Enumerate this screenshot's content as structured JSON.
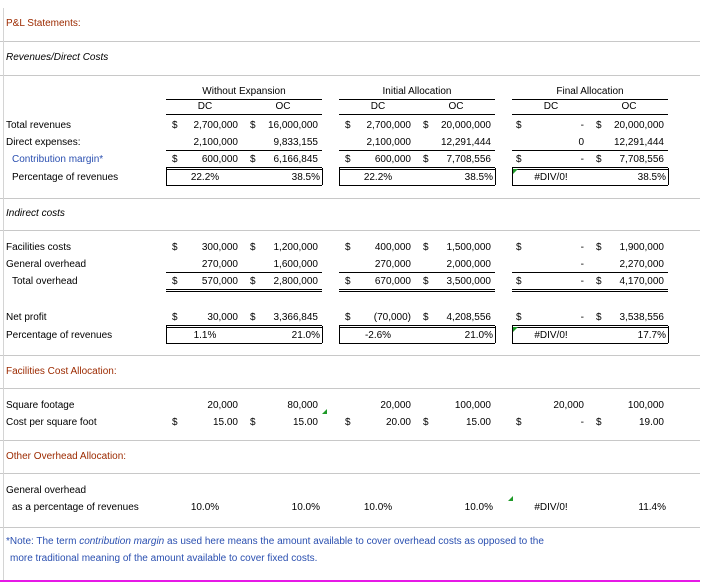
{
  "sections": {
    "pl": "P&L Statements:",
    "revenues": "Revenues/Direct Costs",
    "indirect": "Indirect costs",
    "facilities": "Facilities Cost Allocation:",
    "other": "Other Overhead Allocation:"
  },
  "headers": {
    "groups": [
      "Without Expansion",
      "Initial Allocation",
      "Final Allocation"
    ],
    "dc": "DC",
    "oc": "OC"
  },
  "currency": "$",
  "rows": {
    "total_revenues": {
      "label": "Total revenues",
      "values": [
        "2,700,000",
        "16,000,000",
        "2,700,000",
        "20,000,000",
        "-",
        "20,000,000"
      ]
    },
    "direct_expenses": {
      "label": "Direct expenses:",
      "values": [
        "2,100,000",
        "9,833,155",
        "2,100,000",
        "12,291,444",
        "0",
        "12,291,444"
      ]
    },
    "contribution_margin": {
      "label": "Contribution margin*",
      "values": [
        "600,000",
        "6,166,845",
        "600,000",
        "7,708,556",
        "-",
        "7,708,556"
      ]
    },
    "pct_revenues": {
      "label": "Percentage of revenues",
      "values": [
        "22.2%",
        "38.5%",
        "22.2%",
        "38.5%",
        "#DIV/0!",
        "38.5%"
      ]
    },
    "facilities_costs": {
      "label": "Facilities costs",
      "values": [
        "300,000",
        "1,200,000",
        "400,000",
        "1,500,000",
        "-",
        "1,900,000"
      ]
    },
    "general_overhead": {
      "label": "General overhead",
      "values": [
        "270,000",
        "1,600,000",
        "270,000",
        "2,000,000",
        "-",
        "2,270,000"
      ]
    },
    "total_overhead": {
      "label": "Total overhead",
      "values": [
        "570,000",
        "2,800,000",
        "670,000",
        "3,500,000",
        "-",
        "4,170,000"
      ]
    },
    "net_profit": {
      "label": "Net profit",
      "values": [
        "30,000",
        "3,366,845",
        "(70,000)",
        "4,208,556",
        "-",
        "3,538,556"
      ]
    },
    "net_pct": {
      "label": "Percentage of revenues",
      "values": [
        "1.1%",
        "21.0%",
        "-2.6%",
        "21.0%",
        "#DIV/0!",
        "17.7%"
      ]
    },
    "square_footage": {
      "label": "Square footage",
      "values": [
        "20,000",
        "80,000",
        "20,000",
        "100,000",
        "20,000",
        "100,000"
      ]
    },
    "cost_per_sqft": {
      "label": "Cost per square foot",
      "values": [
        "15.00",
        "15.00",
        "20.00",
        "15.00",
        "-",
        "19.00"
      ]
    },
    "gen_overhead_label": {
      "label": "General overhead"
    },
    "gen_overhead_pct": {
      "label": "as a percentage of revenues",
      "values": [
        "10.0%",
        "10.0%",
        "10.0%",
        "10.0%",
        "#DIV/0!",
        "11.4%"
      ]
    }
  },
  "note": {
    "line1_pre": "*Note: The term ",
    "line1_term": "contribution margin",
    "line1_post": " as used here means the amount available to cover overhead costs as opposed to the",
    "line2": "more traditional meaning of the amount available to cover fixed costs."
  },
  "colors": {
    "section_text": "#9c2a00",
    "blue_text": "#2a4fb0",
    "magenta_border": "#e619e6",
    "marker_green": "#1e9a28"
  }
}
